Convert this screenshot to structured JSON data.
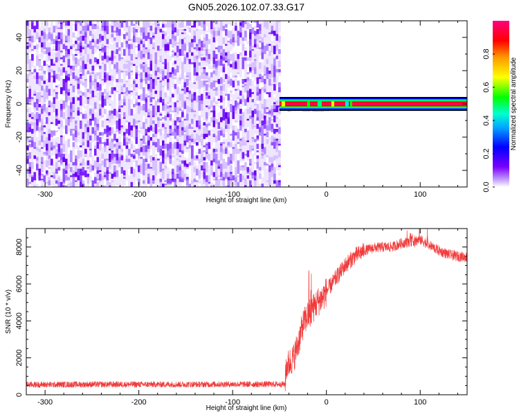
{
  "page_title": "GN05.2026.102.07.33.G17",
  "chart_data": [
    {
      "type": "heatmap",
      "title": "GN05.2026.102.07.33.G17",
      "xlabel": "Height of straight line (km)",
      "ylabel": "Frequency (Hz)",
      "xlim": [
        -320,
        150
      ],
      "ylim": [
        -50,
        50
      ],
      "x_ticks": [
        -300,
        -200,
        -100,
        0,
        100
      ],
      "y_ticks": [
        -40,
        -20,
        0,
        20,
        40
      ],
      "noise_region_x": [
        -320,
        -50
      ],
      "signal_start_x": -50,
      "signal_frequency_hz": 0,
      "signal_halfwidth_hz": 2.2,
      "colorbar": {
        "label": "Normalized spectral amplitude",
        "range": [
          0,
          1
        ],
        "ticks": [
          0.0,
          0.2,
          0.4,
          0.6,
          0.8
        ],
        "colormap": [
          "#ffffff",
          "#7b00ff",
          "#0000ff",
          "#00e0ff",
          "#00ff00",
          "#ffff00",
          "#ff9900",
          "#ff0000",
          "#ff00a0"
        ]
      },
      "grid": false
    },
    {
      "type": "line",
      "xlabel": "Height of straight line (km)",
      "ylabel": "SNR (10 * v/v)",
      "xlim": [
        -320,
        150
      ],
      "ylim": [
        0,
        9000
      ],
      "x_ticks": [
        -300,
        -200,
        -100,
        0,
        100
      ],
      "y_ticks": [
        0,
        2000,
        4000,
        6000,
        8000
      ],
      "series_color": "#f03a3a",
      "grid": false,
      "x": [
        -320,
        -300,
        -250,
        -200,
        -150,
        -100,
        -70,
        -44,
        -43,
        -35,
        -30,
        -25,
        -20,
        -15,
        -10,
        -5,
        0,
        10,
        20,
        30,
        40,
        50,
        60,
        70,
        80,
        90,
        100,
        110,
        120,
        130,
        140,
        150
      ],
      "y": [
        550,
        550,
        560,
        560,
        560,
        570,
        570,
        570,
        1500,
        2000,
        2800,
        3800,
        4300,
        4600,
        5000,
        5200,
        5600,
        6300,
        7000,
        7500,
        7800,
        7950,
        8000,
        8000,
        8200,
        8300,
        8400,
        8100,
        7800,
        7600,
        7500,
        7450
      ]
    }
  ]
}
